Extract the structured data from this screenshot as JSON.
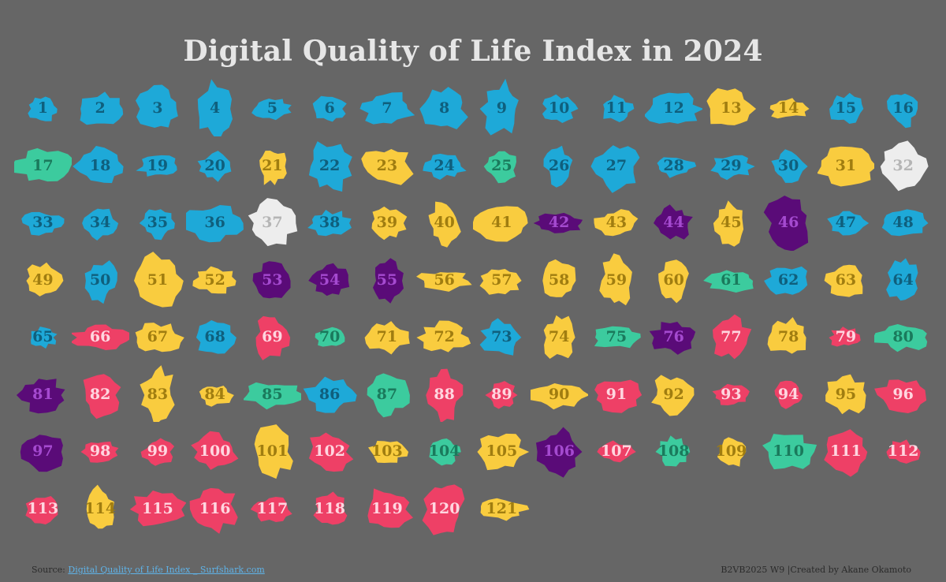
{
  "title": "Digital Quality of Life Index in 2024",
  "footer": {
    "source_label": "Source:",
    "source_link_text": "Digital Quality of Life Index _ Surfshark.com",
    "credit": "B2VB2025 W9 |Created by Akane Okamoto"
  },
  "colors": {
    "background": "#666666",
    "blue": "#1EA9D8",
    "teal": "#3CCB9E",
    "yellow": "#F9CC3F",
    "white": "#EDEDED",
    "purple": "#5A0B78",
    "pink": "#EE4066"
  },
  "countries": [
    {
      "rank": "1",
      "color": "blue"
    },
    {
      "rank": "2",
      "color": "blue"
    },
    {
      "rank": "3",
      "color": "blue"
    },
    {
      "rank": "4",
      "color": "blue"
    },
    {
      "rank": "5",
      "color": "blue"
    },
    {
      "rank": "6",
      "color": "blue"
    },
    {
      "rank": "7",
      "color": "blue"
    },
    {
      "rank": "8",
      "color": "blue"
    },
    {
      "rank": "9",
      "color": "blue"
    },
    {
      "rank": "10",
      "color": "blue"
    },
    {
      "rank": "11",
      "color": "blue"
    },
    {
      "rank": "12",
      "color": "blue"
    },
    {
      "rank": "13",
      "color": "yellow"
    },
    {
      "rank": "14",
      "color": "yellow"
    },
    {
      "rank": "15",
      "color": "blue"
    },
    {
      "rank": "16",
      "color": "blue"
    },
    {
      "rank": "17",
      "color": "teal"
    },
    {
      "rank": "18",
      "color": "blue"
    },
    {
      "rank": "19",
      "color": "blue"
    },
    {
      "rank": "20",
      "color": "blue"
    },
    {
      "rank": "21",
      "color": "yellow"
    },
    {
      "rank": "22",
      "color": "blue"
    },
    {
      "rank": "23",
      "color": "yellow"
    },
    {
      "rank": "24",
      "color": "blue"
    },
    {
      "rank": "25",
      "color": "teal"
    },
    {
      "rank": "26",
      "color": "blue"
    },
    {
      "rank": "27",
      "color": "blue"
    },
    {
      "rank": "28",
      "color": "blue"
    },
    {
      "rank": "29",
      "color": "blue"
    },
    {
      "rank": "30",
      "color": "blue"
    },
    {
      "rank": "31",
      "color": "yellow"
    },
    {
      "rank": "32",
      "color": "white"
    },
    {
      "rank": "33",
      "color": "blue"
    },
    {
      "rank": "34",
      "color": "blue"
    },
    {
      "rank": "35",
      "color": "blue"
    },
    {
      "rank": "36",
      "color": "blue"
    },
    {
      "rank": "37",
      "color": "white"
    },
    {
      "rank": "38",
      "color": "blue"
    },
    {
      "rank": "39",
      "color": "yellow"
    },
    {
      "rank": "40",
      "color": "yellow"
    },
    {
      "rank": "41",
      "color": "yellow"
    },
    {
      "rank": "42",
      "color": "purple"
    },
    {
      "rank": "43",
      "color": "yellow"
    },
    {
      "rank": "44",
      "color": "purple"
    },
    {
      "rank": "45",
      "color": "yellow"
    },
    {
      "rank": "46",
      "color": "purple"
    },
    {
      "rank": "47",
      "color": "blue"
    },
    {
      "rank": "48",
      "color": "blue"
    },
    {
      "rank": "49",
      "color": "yellow"
    },
    {
      "rank": "50",
      "color": "blue"
    },
    {
      "rank": "51",
      "color": "yellow"
    },
    {
      "rank": "52",
      "color": "yellow"
    },
    {
      "rank": "53",
      "color": "purple"
    },
    {
      "rank": "54",
      "color": "purple"
    },
    {
      "rank": "55",
      "color": "purple"
    },
    {
      "rank": "56",
      "color": "yellow"
    },
    {
      "rank": "57",
      "color": "yellow"
    },
    {
      "rank": "58",
      "color": "yellow"
    },
    {
      "rank": "59",
      "color": "yellow"
    },
    {
      "rank": "60",
      "color": "yellow"
    },
    {
      "rank": "61",
      "color": "teal"
    },
    {
      "rank": "62",
      "color": "blue"
    },
    {
      "rank": "63",
      "color": "yellow"
    },
    {
      "rank": "64",
      "color": "blue"
    },
    {
      "rank": "65",
      "color": "blue"
    },
    {
      "rank": "66",
      "color": "pink"
    },
    {
      "rank": "67",
      "color": "yellow"
    },
    {
      "rank": "68",
      "color": "blue"
    },
    {
      "rank": "69",
      "color": "pink"
    },
    {
      "rank": "70",
      "color": "teal"
    },
    {
      "rank": "71",
      "color": "yellow"
    },
    {
      "rank": "72",
      "color": "yellow"
    },
    {
      "rank": "73",
      "color": "blue"
    },
    {
      "rank": "74",
      "color": "yellow"
    },
    {
      "rank": "75",
      "color": "teal"
    },
    {
      "rank": "76",
      "color": "purple"
    },
    {
      "rank": "77",
      "color": "pink"
    },
    {
      "rank": "78",
      "color": "yellow"
    },
    {
      "rank": "79",
      "color": "pink"
    },
    {
      "rank": "80",
      "color": "teal"
    },
    {
      "rank": "81",
      "color": "purple"
    },
    {
      "rank": "82",
      "color": "pink"
    },
    {
      "rank": "83",
      "color": "yellow"
    },
    {
      "rank": "84",
      "color": "yellow"
    },
    {
      "rank": "85",
      "color": "teal"
    },
    {
      "rank": "86",
      "color": "blue"
    },
    {
      "rank": "87",
      "color": "teal"
    },
    {
      "rank": "88",
      "color": "pink"
    },
    {
      "rank": "89",
      "color": "pink"
    },
    {
      "rank": "90",
      "color": "yellow"
    },
    {
      "rank": "91",
      "color": "pink"
    },
    {
      "rank": "92",
      "color": "yellow"
    },
    {
      "rank": "93",
      "color": "pink"
    },
    {
      "rank": "94",
      "color": "pink"
    },
    {
      "rank": "95",
      "color": "yellow"
    },
    {
      "rank": "96",
      "color": "pink"
    },
    {
      "rank": "97",
      "color": "purple"
    },
    {
      "rank": "98",
      "color": "pink"
    },
    {
      "rank": "99",
      "color": "pink"
    },
    {
      "rank": "100",
      "color": "pink"
    },
    {
      "rank": "101",
      "color": "yellow"
    },
    {
      "rank": "102",
      "color": "pink"
    },
    {
      "rank": "103",
      "color": "yellow"
    },
    {
      "rank": "104",
      "color": "teal"
    },
    {
      "rank": "105",
      "color": "yellow"
    },
    {
      "rank": "106",
      "color": "purple"
    },
    {
      "rank": "107",
      "color": "pink"
    },
    {
      "rank": "108",
      "color": "teal"
    },
    {
      "rank": "109",
      "color": "yellow"
    },
    {
      "rank": "110",
      "color": "teal"
    },
    {
      "rank": "111",
      "color": "pink"
    },
    {
      "rank": "112",
      "color": "pink"
    },
    {
      "rank": "113",
      "color": "pink"
    },
    {
      "rank": "114",
      "color": "yellow"
    },
    {
      "rank": "115",
      "color": "pink"
    },
    {
      "rank": "116",
      "color": "pink"
    },
    {
      "rank": "117",
      "color": "pink"
    },
    {
      "rank": "118",
      "color": "pink"
    },
    {
      "rank": "119",
      "color": "pink"
    },
    {
      "rank": "120",
      "color": "pink"
    },
    {
      "rank": "121",
      "color": "yellow"
    }
  ]
}
